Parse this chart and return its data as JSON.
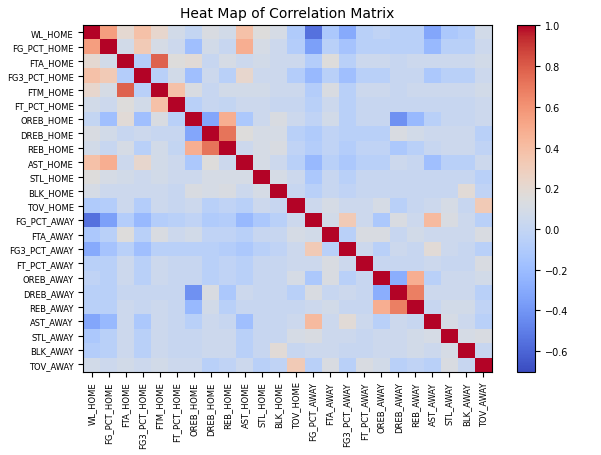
{
  "labels": [
    "WL_HOME",
    "FG_PCT_HOME",
    "FTA_HOME",
    "FG3_PCT_HOME",
    "FTM_HOME",
    "FT_PCT_HOME",
    "OREB_HOME",
    "DREB_HOME",
    "REB_HOME",
    "AST_HOME",
    "STL_HOME",
    "BLK_HOME",
    "TOV_HOME",
    "FG_PCT_AWAY",
    "FTA_AWAY",
    "FG3_PCT_AWAY",
    "FT_PCT_AWAY",
    "OREB_AWAY",
    "DREB_AWAY",
    "REB_AWAY",
    "AST_AWAY",
    "STL_AWAY",
    "BLK_AWAY",
    "TOV_AWAY"
  ],
  "title": "Heat Map of Correlation Matrix",
  "vmin": -0.7,
  "vmax": 1.0,
  "colorbar_ticks": [
    1.0,
    0.8,
    0.6,
    0.4,
    0.2,
    0.0,
    -0.2,
    -0.4,
    -0.6
  ],
  "figsize": [
    6.01,
    4.56
  ],
  "dpi": 100,
  "tick_fontsize": 6,
  "title_fontsize": 10
}
